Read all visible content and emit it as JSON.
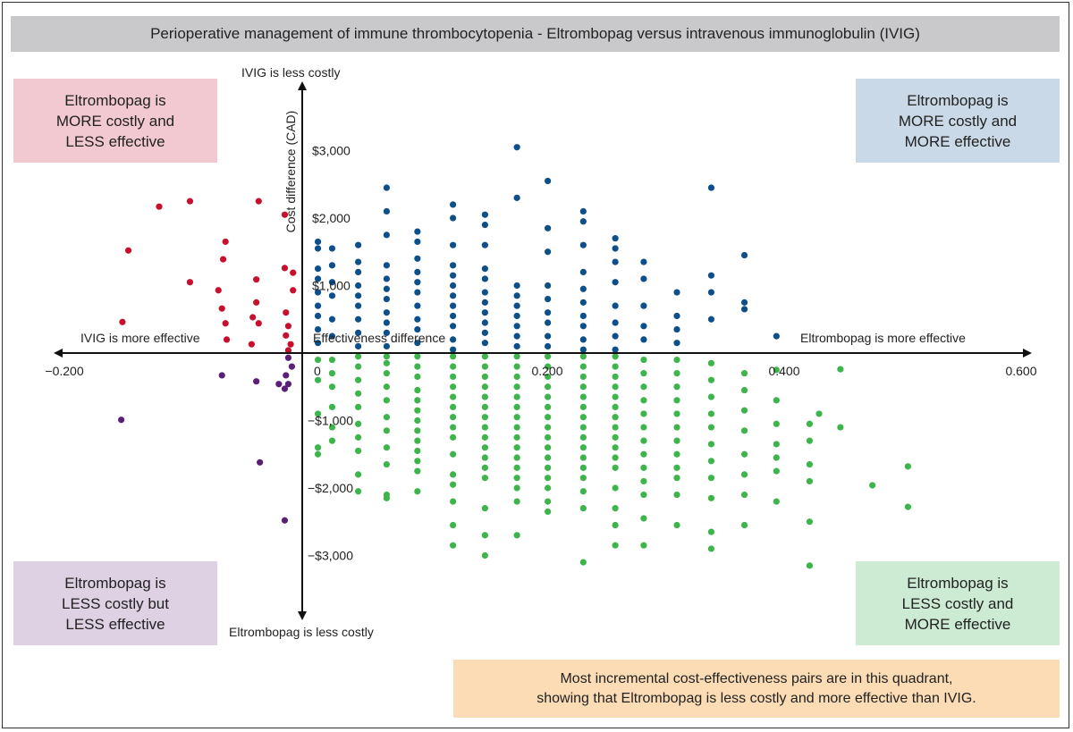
{
  "title": "Perioperative management of immune thrombocytopenia - Eltrombopag versus intravenous immunoglobulin (IVIG)",
  "quadrants": {
    "top_left": {
      "text": "Eltrombopag is\nMORE costly and\nLESS effective",
      "color": "#f2c9d0"
    },
    "top_right": {
      "text": "Eltrombopag is\nMORE costly and\nMORE effective",
      "color": "#c9d9e7"
    },
    "bottom_left": {
      "text": "Eltrombopag is\nLESS costly but\nLESS effective",
      "color": "#ddd1e3"
    },
    "bottom_right": {
      "text": "Eltrombopag is\nLESS costly and\nMORE effective",
      "color": "#cdebd3"
    }
  },
  "note": {
    "text": "Most incremental cost-effectiveness pairs are in this quadrant,\nshowing that Eltrombopag is less costly and more effective than IVIG.",
    "color": "#fbdcb5"
  },
  "chart_data": {
    "type": "scatter",
    "xlabel": "Effectiveness difference",
    "ylabel": "Cost difference (CAD)",
    "axis_annotations": {
      "top": "IVIG is less costly",
      "bottom": "Eltrombopag is less costly",
      "left": "IVIG is more effective",
      "right": "Eltrombopag is more effective"
    },
    "xlim": [
      -0.2,
      0.6
    ],
    "ylim": [
      -3500,
      3500
    ],
    "x_ticks": [
      {
        "value": -0.2,
        "label": "−0.200"
      },
      {
        "value": 0,
        "label": "0"
      },
      {
        "value": 0.2,
        "label": "0.200"
      },
      {
        "value": 0.4,
        "label": "0.400"
      },
      {
        "value": 0.6,
        "label": "0.600"
      }
    ],
    "y_ticks": [
      {
        "value": 3000,
        "label": "$3,000"
      },
      {
        "value": 2000,
        "label": "$2,000"
      },
      {
        "value": 1000,
        "label": "$1,000"
      },
      {
        "value": -1000,
        "label": "−$1,000"
      },
      {
        "value": -2000,
        "label": "−$2,000"
      },
      {
        "value": -3000,
        "label": "−$3,000"
      }
    ],
    "grid": false,
    "series": [
      {
        "color": "#c8102e",
        "points": [
          [
            -0.146,
            1520
          ],
          [
            -0.12,
            2170
          ],
          [
            -0.094,
            2250
          ],
          [
            -0.036,
            2250
          ],
          [
            -0.014,
            2050
          ],
          [
            -0.064,
            1650
          ],
          [
            -0.066,
            1390
          ],
          [
            -0.094,
            1050
          ],
          [
            -0.07,
            930
          ],
          [
            -0.038,
            1090
          ],
          [
            -0.038,
            750
          ],
          [
            -0.014,
            1260
          ],
          [
            -0.007,
            1190
          ],
          [
            -0.007,
            930
          ],
          [
            -0.151,
            460
          ],
          [
            -0.067,
            660
          ],
          [
            -0.064,
            440
          ],
          [
            -0.041,
            530
          ],
          [
            -0.036,
            440
          ],
          [
            -0.042,
            130
          ],
          [
            -0.013,
            600
          ],
          [
            -0.011,
            400
          ],
          [
            -0.013,
            260
          ],
          [
            -0.009,
            130
          ],
          [
            -0.011,
            40
          ],
          [
            -0.063,
            200
          ]
        ]
      },
      {
        "color": "#5b1f78",
        "points": [
          [
            -0.011,
            -70
          ],
          [
            -0.008,
            -200
          ],
          [
            -0.013,
            -330
          ],
          [
            -0.011,
            -460
          ],
          [
            -0.014,
            -530
          ],
          [
            -0.067,
            -330
          ],
          [
            -0.038,
            -420
          ],
          [
            -0.152,
            -990
          ],
          [
            -0.035,
            -1620
          ],
          [
            -0.014,
            -2480
          ],
          [
            -0.019,
            -460
          ]
        ]
      },
      {
        "color": "#0c4f8b",
        "columns": [
          {
            "x": 0.014,
            "y": [
              1650,
              1550,
              1250,
              1100,
              900,
              700,
              550,
              350,
              150
            ]
          },
          {
            "x": 0.026,
            "y": [
              1550,
              1300,
              1050,
              850,
              500,
              250
            ]
          },
          {
            "x": 0.048,
            "y": [
              1600,
              1350,
              1200,
              1000,
              850,
              700,
              500,
              300,
              100
            ]
          },
          {
            "x": 0.072,
            "y": [
              2450,
              2100,
              1750,
              1300,
              1100,
              950,
              800,
              600,
              450,
              300,
              100
            ]
          },
          {
            "x": 0.098,
            "y": [
              1800,
              1650,
              1400,
              1200,
              1050,
              900,
              700,
              500,
              350,
              150
            ]
          },
          {
            "x": 0.128,
            "y": [
              2200,
              2000,
              1600,
              1300,
              1150,
              1000,
              850,
              700,
              550,
              400,
              200,
              50
            ]
          },
          {
            "x": 0.155,
            "y": [
              2050,
              1900,
              1600,
              1250,
              1100,
              900,
              750,
              600,
              450,
              300,
              150
            ]
          },
          {
            "x": 0.182,
            "y": [
              3050,
              2300,
              1000,
              850,
              700,
              550,
              400,
              250,
              100
            ]
          },
          {
            "x": 0.208,
            "y": [
              2550,
              1850,
              1500,
              1000,
              800,
              600,
              450,
              250,
              100
            ]
          },
          {
            "x": 0.238,
            "y": [
              2100,
              1950,
              1600,
              1200,
              950,
              750,
              550,
              400,
              200,
              50
            ]
          },
          {
            "x": 0.265,
            "y": [
              1700,
              1550,
              1350,
              1050,
              700,
              450,
              250,
              50
            ]
          },
          {
            "x": 0.289,
            "y": [
              1350,
              1100,
              700,
              400,
              200
            ]
          },
          {
            "x": 0.317,
            "y": [
              900,
              550,
              350,
              150
            ]
          },
          {
            "x": 0.346,
            "y": [
              2450,
              1150,
              900,
              500
            ]
          },
          {
            "x": 0.374,
            "y": [
              1450,
              750,
              650
            ]
          },
          {
            "x": 0.401,
            "y": [
              250
            ]
          }
        ]
      },
      {
        "color": "#3db54b",
        "columns": [
          {
            "x": 0.014,
            "y": [
              -100,
              -400,
              -900,
              -1400,
              -1500
            ]
          },
          {
            "x": 0.026,
            "y": [
              -100,
              -300,
              -500,
              -800,
              -1100,
              -1300
            ]
          },
          {
            "x": 0.048,
            "y": [
              -50,
              -200,
              -400,
              -600,
              -800,
              -1050,
              -1250,
              -1450,
              -1800,
              -2050
            ]
          },
          {
            "x": 0.072,
            "y": [
              -50,
              -150,
              -300,
              -500,
              -700,
              -950,
              -1150,
              -1400,
              -1650,
              -2100,
              -2150
            ]
          },
          {
            "x": 0.098,
            "y": [
              -50,
              -200,
              -350,
              -550,
              -700,
              -850,
              -1000,
              -1150,
              -1300,
              -1450,
              -1600,
              -1750,
              -2050
            ]
          },
          {
            "x": 0.128,
            "y": [
              -50,
              -200,
              -350,
              -500,
              -650,
              -800,
              -950,
              -1100,
              -1250,
              -1500,
              -1800,
              -1950,
              -2200,
              -2550,
              -2850
            ]
          },
          {
            "x": 0.155,
            "y": [
              -50,
              -200,
              -350,
              -500,
              -650,
              -800,
              -950,
              -1100,
              -1250,
              -1400,
              -1550,
              -1700,
              -1850,
              -2300,
              -2700,
              -3000
            ]
          },
          {
            "x": 0.182,
            "y": [
              -50,
              -200,
              -350,
              -500,
              -650,
              -800,
              -950,
              -1100,
              -1250,
              -1400,
              -1550,
              -1700,
              -1850,
              -2000,
              -2200,
              -2700
            ]
          },
          {
            "x": 0.208,
            "y": [
              -50,
              -200,
              -350,
              -500,
              -650,
              -800,
              -950,
              -1100,
              -1250,
              -1400,
              -1550,
              -1700,
              -1850,
              -2000,
              -2200,
              -2350
            ]
          },
          {
            "x": 0.238,
            "y": [
              -50,
              -200,
              -350,
              -500,
              -650,
              -800,
              -950,
              -1100,
              -1250,
              -1400,
              -1550,
              -1700,
              -1850,
              -2050,
              -2300,
              -3100
            ]
          },
          {
            "x": 0.265,
            "y": [
              -50,
              -200,
              -350,
              -500,
              -650,
              -800,
              -950,
              -1100,
              -1250,
              -1400,
              -1550,
              -1700,
              -2000,
              -2300,
              -2550,
              -2850
            ]
          },
          {
            "x": 0.289,
            "y": [
              -100,
              -300,
              -500,
              -700,
              -900,
              -1100,
              -1300,
              -1500,
              -1700,
              -1900,
              -2100,
              -2450,
              -2850
            ]
          },
          {
            "x": 0.317,
            "y": [
              -100,
              -300,
              -500,
              -700,
              -900,
              -1100,
              -1300,
              -1500,
              -1700,
              -1850,
              -2100,
              -2550
            ]
          },
          {
            "x": 0.346,
            "y": [
              -150,
              -400,
              -650,
              -900,
              -1100,
              -1350,
              -1600,
              -1850,
              -2150,
              -2650,
              -2900
            ]
          },
          {
            "x": 0.374,
            "y": [
              -300,
              -550,
              -850,
              -1150,
              -1500,
              -1800,
              -2100,
              -2550
            ]
          },
          {
            "x": 0.401,
            "y": [
              -250,
              -700,
              -1050,
              -1350,
              -1550,
              -1750,
              -2200
            ]
          },
          {
            "x": 0.429,
            "y": [
              -1050,
              -1300,
              -1650,
              -1900,
              -2500,
              -3150
            ]
          },
          {
            "x": 0.437,
            "y": [
              -900
            ]
          },
          {
            "x": 0.455,
            "y": [
              -240,
              -1100
            ]
          },
          {
            "x": 0.482,
            "y": [
              -1960
            ]
          },
          {
            "x": 0.512,
            "y": [
              -1680,
              -2280
            ]
          }
        ]
      }
    ]
  }
}
